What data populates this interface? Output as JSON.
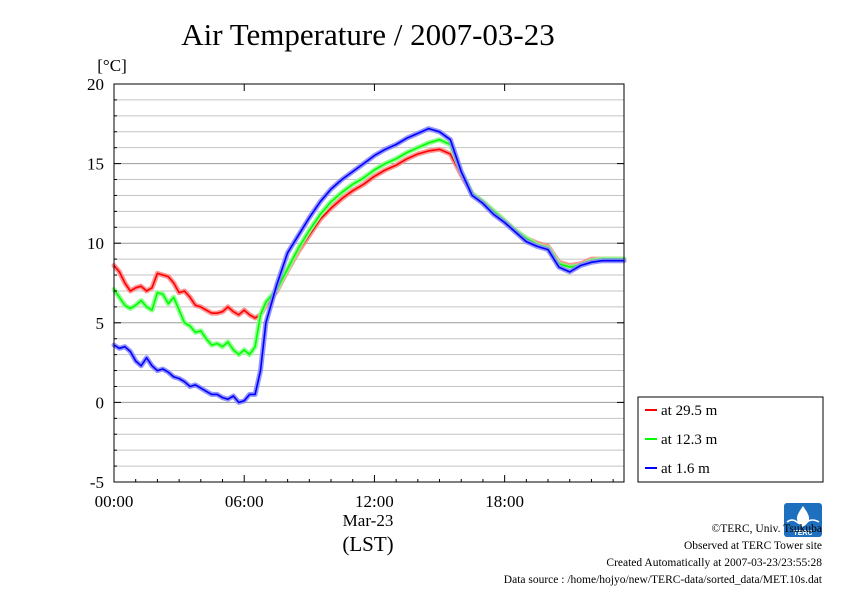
{
  "chart_data": {
    "type": "line",
    "title": "Air Temperature / 2007-03-23",
    "ylabel": "[°C]",
    "xlabel": "(LST)",
    "date_label": "Mar-23",
    "x_range_hours": [
      0,
      23.5
    ],
    "ylim": [
      -5,
      20
    ],
    "y_ticks": [
      -5,
      0,
      5,
      10,
      15,
      20
    ],
    "y_minor_step": 1,
    "x_ticks": [
      {
        "hour": 0,
        "label": "00:00"
      },
      {
        "hour": 6,
        "label": "06:00"
      },
      {
        "hour": 12,
        "label": "12:00"
      },
      {
        "hour": 18,
        "label": "18:00"
      }
    ],
    "grid": true,
    "legend_position": "right",
    "series": [
      {
        "name": "at 29.5 m",
        "color": "#ff0000",
        "x": [
          0,
          0.25,
          0.5,
          0.75,
          1,
          1.25,
          1.5,
          1.75,
          2,
          2.25,
          2.5,
          2.75,
          3,
          3.25,
          3.5,
          3.75,
          4,
          4.25,
          4.5,
          4.75,
          5,
          5.25,
          5.5,
          5.75,
          6,
          6.25,
          6.5,
          6.75,
          7,
          7.5,
          8,
          8.5,
          9,
          9.5,
          10,
          10.5,
          11,
          11.5,
          12,
          12.5,
          13,
          13.5,
          14,
          14.5,
          15,
          15.5,
          16,
          16.5,
          17,
          17.5,
          18,
          18.5,
          19,
          19.5,
          20,
          20.5,
          21,
          21.5,
          22,
          22.5,
          23,
          23.5
        ],
        "y": [
          8.6,
          8.2,
          7.5,
          7.0,
          7.2,
          7.3,
          7.0,
          7.2,
          8.1,
          8.0,
          7.9,
          7.5,
          6.9,
          7.0,
          6.6,
          6.1,
          6.0,
          5.8,
          5.6,
          5.6,
          5.7,
          6.0,
          5.7,
          5.5,
          5.8,
          5.5,
          5.3,
          5.5,
          6.1,
          7.0,
          8.3,
          9.5,
          10.5,
          11.5,
          12.2,
          12.8,
          13.3,
          13.7,
          14.2,
          14.6,
          14.9,
          15.3,
          15.6,
          15.8,
          15.9,
          15.6,
          14.3,
          13.1,
          12.6,
          12.0,
          11.4,
          10.8,
          10.3,
          10.0,
          9.8,
          8.8,
          8.6,
          8.7,
          9.0,
          9.0,
          9.0,
          9.0
        ]
      },
      {
        "name": "at 12.3 m",
        "color": "#00ff00",
        "x": [
          0,
          0.25,
          0.5,
          0.75,
          1,
          1.25,
          1.5,
          1.75,
          2,
          2.25,
          2.5,
          2.75,
          3,
          3.25,
          3.5,
          3.75,
          4,
          4.25,
          4.5,
          4.75,
          5,
          5.25,
          5.5,
          5.75,
          6,
          6.25,
          6.5,
          6.75,
          7,
          7.5,
          8,
          8.5,
          9,
          9.5,
          10,
          10.5,
          11,
          11.5,
          12,
          12.5,
          13,
          13.5,
          14,
          14.5,
          15,
          15.5,
          16,
          16.5,
          17,
          17.5,
          18,
          18.5,
          19,
          19.5,
          20,
          20.5,
          21,
          21.5,
          22,
          22.5,
          23,
          23.5
        ],
        "y": [
          7.1,
          6.6,
          6.1,
          5.9,
          6.1,
          6.4,
          6.0,
          5.8,
          6.9,
          6.8,
          6.2,
          6.6,
          5.8,
          5.0,
          4.8,
          4.4,
          4.5,
          4.0,
          3.6,
          3.7,
          3.5,
          3.8,
          3.3,
          3.0,
          3.3,
          3.0,
          3.5,
          5.5,
          6.3,
          7.1,
          8.4,
          9.7,
          10.8,
          11.8,
          12.6,
          13.2,
          13.7,
          14.1,
          14.6,
          15.0,
          15.3,
          15.7,
          16.0,
          16.3,
          16.5,
          16.2,
          14.5,
          13.1,
          12.6,
          12.0,
          11.4,
          10.8,
          10.3,
          9.9,
          9.7,
          8.7,
          8.5,
          8.6,
          8.9,
          9.0,
          9.0,
          9.0
        ]
      },
      {
        "name": "at 1.6 m",
        "color": "#0000ff",
        "x": [
          0,
          0.25,
          0.5,
          0.75,
          1,
          1.25,
          1.5,
          1.75,
          2,
          2.25,
          2.5,
          2.75,
          3,
          3.25,
          3.5,
          3.75,
          4,
          4.25,
          4.5,
          4.75,
          5,
          5.25,
          5.5,
          5.75,
          6,
          6.25,
          6.5,
          6.75,
          7,
          7.5,
          8,
          8.5,
          9,
          9.5,
          10,
          10.5,
          11,
          11.5,
          12,
          12.5,
          13,
          13.5,
          14,
          14.5,
          15,
          15.5,
          16,
          16.5,
          17,
          17.5,
          18,
          18.5,
          19,
          19.5,
          20,
          20.5,
          21,
          21.5,
          22,
          22.5,
          23,
          23.5
        ],
        "y": [
          3.6,
          3.4,
          3.5,
          3.2,
          2.6,
          2.3,
          2.8,
          2.3,
          2.0,
          2.1,
          1.9,
          1.6,
          1.5,
          1.3,
          1.0,
          1.1,
          0.9,
          0.7,
          0.5,
          0.5,
          0.3,
          0.2,
          0.4,
          0.0,
          0.1,
          0.5,
          0.5,
          2.0,
          5.0,
          7.4,
          9.4,
          10.5,
          11.6,
          12.6,
          13.4,
          14.0,
          14.5,
          15.0,
          15.5,
          15.9,
          16.2,
          16.6,
          16.9,
          17.2,
          17.0,
          16.5,
          14.5,
          13.0,
          12.5,
          11.8,
          11.3,
          10.7,
          10.1,
          9.8,
          9.6,
          8.5,
          8.2,
          8.6,
          8.8,
          8.9,
          8.9,
          8.9
        ]
      }
    ]
  },
  "footer": {
    "copyright": "©TERC, Univ. Tsukuba",
    "site": "Observed at TERC Tower site",
    "created": "Created Automatically at 2007-03-23/23:55:28",
    "source": "Data source : /home/hojyo/new/TERC-data/sorted_data/MET.10s.dat",
    "logo_text": "TERC"
  }
}
